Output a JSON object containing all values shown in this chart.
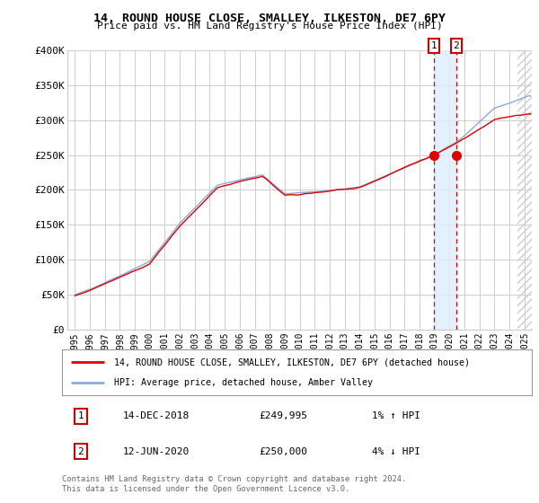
{
  "title": "14, ROUND HOUSE CLOSE, SMALLEY, ILKESTON, DE7 6PY",
  "subtitle": "Price paid vs. HM Land Registry's House Price Index (HPI)",
  "ylim": [
    0,
    400000
  ],
  "yticks": [
    0,
    50000,
    100000,
    150000,
    200000,
    250000,
    300000,
    350000,
    400000
  ],
  "ytick_labels": [
    "£0",
    "£50K",
    "£100K",
    "£150K",
    "£200K",
    "£250K",
    "£300K",
    "£350K",
    "£400K"
  ],
  "xlim": [
    1994.5,
    2025.5
  ],
  "xticks": [
    1995,
    1996,
    1997,
    1998,
    1999,
    2000,
    2001,
    2002,
    2003,
    2004,
    2005,
    2006,
    2007,
    2008,
    2009,
    2010,
    2011,
    2012,
    2013,
    2014,
    2015,
    2016,
    2017,
    2018,
    2019,
    2020,
    2021,
    2022,
    2023,
    2024,
    2025
  ],
  "red_line_color": "#dd0000",
  "blue_line_color": "#88aadd",
  "grid_color": "#cccccc",
  "bg_color": "#ffffff",
  "marker1_x": 2018.96,
  "marker1_y": 249995,
  "marker2_x": 2020.45,
  "marker2_y": 250000,
  "legend1": "14, ROUND HOUSE CLOSE, SMALLEY, ILKESTON, DE7 6PY (detached house)",
  "legend2": "HPI: Average price, detached house, Amber Valley",
  "marker1_date": "14-DEC-2018",
  "marker1_price": "£249,995",
  "marker1_hpi": "1% ↑ HPI",
  "marker2_date": "12-JUN-2020",
  "marker2_price": "£250,000",
  "marker2_hpi": "4% ↓ HPI",
  "footer": "Contains HM Land Registry data © Crown copyright and database right 2024.\nThis data is licensed under the Open Government Licence v3.0.",
  "highlight_color": "#ddeeff",
  "hatch_start": 2024.5
}
